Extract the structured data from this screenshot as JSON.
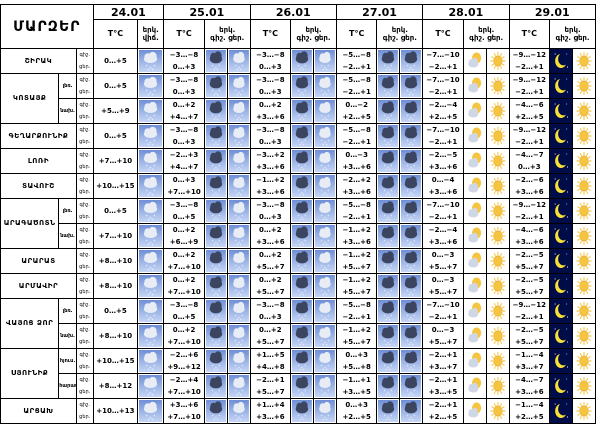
{
  "title": "ՄԱՐԶԵՐ",
  "dates": [
    "24.01",
    "25.01",
    "26.01",
    "27.01",
    "28.01",
    "29.01"
  ],
  "col_temp": "T°C",
  "col_sky": "երկ.",
  "col_sky_unit": "վիճ.",
  "col_night": "գիշ.",
  "col_day": "ցեր.",
  "col_sky_night": "գիշ.",
  "col_sky_day": "ցեր.",
  "rows": [
    {
      "region": "ՇԻՐԱԿ",
      "sub": "",
      "period": [
        "գիշ.",
        "ցեր."
      ],
      "t24": "0…+5",
      "i24": "snow",
      "cells": [
        [
          "−3…−8",
          "0…+3",
          "cloud_snow",
          "snow"
        ],
        [
          "−3…−8",
          "0…+3",
          "cloud_snow",
          "snow"
        ],
        [
          "−5…−8",
          "−2…+1",
          "cloud_snow",
          "cloud_snow"
        ],
        [
          "−7…−10",
          "−2…+1",
          "cloud_sun",
          "sun"
        ],
        [
          "−9…−12",
          "−2…+1",
          "moon",
          "sun"
        ]
      ]
    },
    {
      "region": "ԿՈՏԱՅՔ",
      "sub": "լեռ.",
      "period": [
        "գիշ.",
        "ցեր."
      ],
      "t24": "0…+5",
      "i24": "snow",
      "cells": [
        [
          "−3…−8",
          "0…+3",
          "cloud_snow",
          "snow"
        ],
        [
          "−3…−8",
          "0…+3",
          "cloud_snow",
          "snow"
        ],
        [
          "−5…−8",
          "−2…+1",
          "cloud_snow",
          "cloud_snow"
        ],
        [
          "−7…−10",
          "−2…+1",
          "cloud_sun",
          "sun"
        ],
        [
          "−9…−12",
          "−2…+1",
          "moon",
          "sun"
        ]
      ]
    },
    {
      "region": "",
      "sub": "նախ.",
      "period": [
        "գիշ.",
        "ցեր."
      ],
      "t24": "+5…+9",
      "i24": "snow",
      "cells": [
        [
          "0…+2",
          "+4…+7",
          "cloud_snow",
          "snow"
        ],
        [
          "0…+2",
          "+3…+6",
          "cloud_snow",
          "snow"
        ],
        [
          "0…−2",
          "+2…+5",
          "cloud_snow",
          "cloud_snow"
        ],
        [
          "−2…−4",
          "+2…+5",
          "cloud_sun",
          "sun"
        ],
        [
          "−4…−6",
          "+2…+5",
          "moon",
          "sun"
        ]
      ]
    },
    {
      "region": "ԳԵՂԱՐՔՈՒՆԻՔ",
      "sub": "",
      "period": [
        "գիշ.",
        "ցեր."
      ],
      "t24": "0…+5",
      "i24": "snow",
      "cells": [
        [
          "−3…−8",
          "0…+3",
          "cloud_snow",
          "snow"
        ],
        [
          "−3…−8",
          "0…+3",
          "cloud_snow",
          "snow"
        ],
        [
          "−5…−8",
          "−2…+1",
          "cloud_snow",
          "cloud_snow"
        ],
        [
          "−7…−10",
          "−2…+1",
          "cloud_sun",
          "sun"
        ],
        [
          "−9…−12",
          "−2…+1",
          "moon",
          "sun"
        ]
      ]
    },
    {
      "region": "ԼՈՌԻ",
      "sub": "",
      "period": [
        "գիշ.",
        "ցեր."
      ],
      "t24": "+7…+10",
      "i24": "snow",
      "cells": [
        [
          "−2…+3",
          "+4…+7",
          "cloud_snow",
          "snow"
        ],
        [
          "−3…+2",
          "+3…+6",
          "cloud_snow",
          "snow"
        ],
        [
          "0…−3",
          "+3…+6",
          "cloud_snow",
          "cloud_snow"
        ],
        [
          "−2…−5",
          "+3…+6",
          "cloud_sun",
          "sun"
        ],
        [
          "−4…−7",
          "0…+3",
          "moon",
          "sun"
        ]
      ]
    },
    {
      "region": "ՏԱՎՈՒՇ",
      "sub": "",
      "period": [
        "գիշ.",
        "ցեր."
      ],
      "t24": "+10…+15",
      "i24": "snow",
      "cells": [
        [
          "0…+3",
          "+7…+10",
          "cloud_snow",
          "snow"
        ],
        [
          "−1…+2",
          "+3…+6",
          "cloud_snow",
          "snow"
        ],
        [
          "−2…+2",
          "+3…+6",
          "cloud_snow",
          "cloud_snow"
        ],
        [
          "0…−4",
          "+3…+6",
          "cloud_sun",
          "sun"
        ],
        [
          "−2…−6",
          "+3…+6",
          "moon",
          "sun"
        ]
      ]
    },
    {
      "region": "ԱՐԱԳԱԾՈՏՆ",
      "sub": "լեռ.",
      "period": [
        "գիշ.",
        "ցեր."
      ],
      "t24": "0…+5",
      "i24": "snow",
      "cells": [
        [
          "−3…−8",
          "0…+5",
          "cloud_snow",
          "snow"
        ],
        [
          "−3…−8",
          "0…+3",
          "cloud_snow",
          "snow"
        ],
        [
          "−5…−8",
          "−2…+1",
          "cloud_snow",
          "cloud_snow"
        ],
        [
          "−7…−10",
          "−2…+1",
          "cloud_sun",
          "sun"
        ],
        [
          "−9…−12",
          "−2…+1",
          "moon",
          "sun"
        ]
      ]
    },
    {
      "region": "",
      "sub": "նախ.",
      "period": [
        "գիշ.",
        "ցեր."
      ],
      "t24": "+7…+10",
      "i24": "snow",
      "cells": [
        [
          "0…+2",
          "+6…+9",
          "cloud_snow",
          "snow"
        ],
        [
          "0…+2",
          "+3…+6",
          "cloud_snow",
          "snow"
        ],
        [
          "−1…+2",
          "+3…+6",
          "cloud_snow",
          "cloud_snow"
        ],
        [
          "−2…−4",
          "+3…+6",
          "cloud_sun",
          "sun"
        ],
        [
          "−4…−6",
          "+3…+6",
          "moon",
          "sun"
        ]
      ]
    },
    {
      "region": "ԱՐԱՐԱՏ",
      "sub": "",
      "period": [
        "գիշ.",
        "ցեր."
      ],
      "t24": "+8…+10",
      "i24": "snow",
      "cells": [
        [
          "0…+2",
          "+7…+10",
          "cloud_snow",
          "snow"
        ],
        [
          "0…+2",
          "+5…+7",
          "cloud_snow",
          "snow"
        ],
        [
          "−1…+2",
          "+5…+7",
          "cloud_snow",
          "cloud_snow"
        ],
        [
          "0…−3",
          "+5…+7",
          "cloud_sun",
          "sun"
        ],
        [
          "−2…−5",
          "+5…+7",
          "moon",
          "sun"
        ]
      ]
    },
    {
      "region": "ԱՐՄԱՎԻՐ",
      "sub": "",
      "period": [
        "գիշ.",
        "ցեր."
      ],
      "t24": "+8…+10",
      "i24": "snow",
      "cells": [
        [
          "0…+2",
          "+7…+10",
          "cloud_snow",
          "snow"
        ],
        [
          "0…+2",
          "+5…+7",
          "cloud_snow",
          "snow"
        ],
        [
          "−1…+2",
          "+5…+7",
          "cloud_snow",
          "cloud_snow"
        ],
        [
          "0…−3",
          "+5…+7",
          "cloud_sun",
          "sun"
        ],
        [
          "−2…−5",
          "+5…+7",
          "moon",
          "sun"
        ]
      ]
    },
    {
      "region": "ՎԱՅՈՑ ՁՈՐ",
      "sub": "լեռ.",
      "period": [
        "գիշ.",
        "ցեր."
      ],
      "t24": "0…+5",
      "i24": "snow",
      "cells": [
        [
          "−3…−8",
          "0…+5",
          "cloud_snow",
          "snow"
        ],
        [
          "−3…−8",
          "0…+3",
          "cloud_snow",
          "snow"
        ],
        [
          "−5…−8",
          "−2…+1",
          "cloud_snow",
          "cloud_snow"
        ],
        [
          "−7…−10",
          "−2…+1",
          "cloud_sun",
          "sun"
        ],
        [
          "−9…−12",
          "−2…+1",
          "moon",
          "sun"
        ]
      ]
    },
    {
      "region": "",
      "sub": "նախ.",
      "period": [
        "գիշ.",
        "ցեր."
      ],
      "t24": "+8…+10",
      "i24": "snow",
      "cells": [
        [
          "0…+2",
          "+7…+10",
          "cloud_snow",
          "snow"
        ],
        [
          "0…+2",
          "+5…+7",
          "cloud_snow",
          "snow"
        ],
        [
          "−1…+2",
          "+5…+7",
          "cloud_snow",
          "cloud_snow"
        ],
        [
          "0…−3",
          "+5…+7",
          "cloud_sun",
          "sun"
        ],
        [
          "−2…−5",
          "+5…+7",
          "moon",
          "sun"
        ]
      ]
    },
    {
      "region": "ՍՅՈՒՆԻՔ",
      "sub": "հյուս.",
      "period": [
        "գիշ.",
        "ցեր."
      ],
      "t24": "+10…+15",
      "i24": "snow",
      "cells": [
        [
          "−2…+6",
          "+9…+12",
          "cloud_snow",
          "snow"
        ],
        [
          "+1…+5",
          "+4…+8",
          "cloud_snow",
          "snow"
        ],
        [
          "0…+3",
          "+5…+8",
          "cloud_snow",
          "cloud_snow"
        ],
        [
          "−2…+1",
          "+3…+7",
          "cloud_sun",
          "sun"
        ],
        [
          "−1…−4",
          "+3…+7",
          "moon",
          "sun"
        ]
      ]
    },
    {
      "region": "",
      "sub": "հարավ",
      "period": [
        "գիշ.",
        "ցեր."
      ],
      "t24": "+8…+12",
      "i24": "snow",
      "cells": [
        [
          "−2…+4",
          "+7…+10",
          "cloud_snow",
          "snow"
        ],
        [
          "−2…+1",
          "+5…+7",
          "cloud_snow",
          "snow"
        ],
        [
          "−1…+1",
          "+3…+5",
          "cloud_snow",
          "cloud_snow"
        ],
        [
          "−2…+1",
          "+3…+5",
          "cloud_sun",
          "sun"
        ],
        [
          "−4…−7",
          "+3…+6",
          "moon",
          "sun"
        ]
      ]
    },
    {
      "region": "ԱՐՑԱԽ",
      "sub": "",
      "period": [
        "գիշ.",
        "ցեր."
      ],
      "t24": "+10…+13",
      "i24": "snow",
      "cells": [
        [
          "+3…+6",
          "+7…+10",
          "cloud_snow",
          "snow"
        ],
        [
          "+1…+4",
          "+3…+6",
          "cloud_snow",
          "snow"
        ],
        [
          "0…+3",
          "+2…+5",
          "cloud_snow",
          "cloud_snow"
        ],
        [
          "−2…+1",
          "+2…+5",
          "cloud_sun",
          "sun"
        ],
        [
          "−1…−4",
          "+2…+5",
          "moon",
          "sun"
        ]
      ]
    }
  ],
  "colors": {
    "sky_top": "#6f8fd6",
    "sky_bottom": "#c6d6f5",
    "night": "#000c47",
    "sun": "#f5c542",
    "moon": "#f7e03a"
  }
}
